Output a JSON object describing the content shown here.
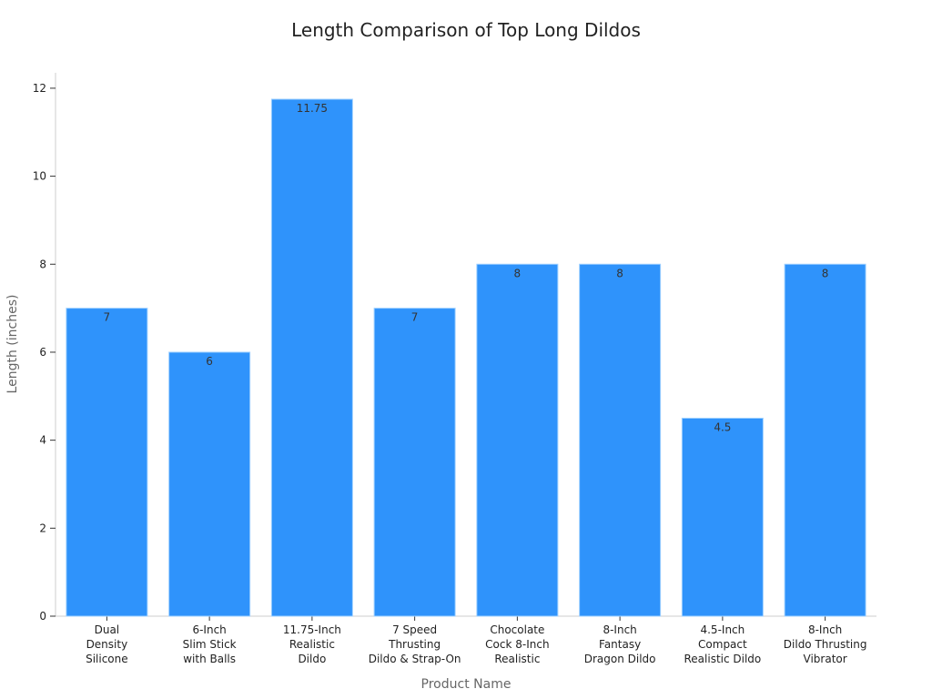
{
  "chart_data": {
    "type": "bar",
    "title": "Length Comparison of Top Long Dildos",
    "xlabel": "Product Name",
    "ylabel": "Length (inches)",
    "categories": [
      [
        "Dual",
        "Density",
        "Silicone"
      ],
      [
        "6-Inch",
        "Slim Stick",
        "with Balls"
      ],
      [
        "11.75-Inch",
        "Realistic",
        "Dildo"
      ],
      [
        "7 Speed",
        "Thrusting",
        "Dildo & Strap-On"
      ],
      [
        "Chocolate",
        "Cock 8-Inch",
        "Realistic"
      ],
      [
        "8-Inch",
        "Fantasy",
        "Dragon Dildo"
      ],
      [
        "4.5-Inch",
        "Compact",
        "Realistic Dildo"
      ],
      [
        "8-Inch",
        "Dildo Thrusting",
        "Vibrator"
      ]
    ],
    "values": [
      7,
      6,
      11.75,
      7,
      8,
      8,
      4.5,
      8
    ],
    "data_labels": [
      "7",
      "6",
      "11.75",
      "7",
      "8",
      "8",
      "4.5",
      "8"
    ],
    "yticks": [
      0,
      2,
      4,
      6,
      8,
      10,
      12
    ],
    "ylim": [
      0,
      12.35
    ],
    "grid": false,
    "bar_color": "#2f93fb"
  }
}
